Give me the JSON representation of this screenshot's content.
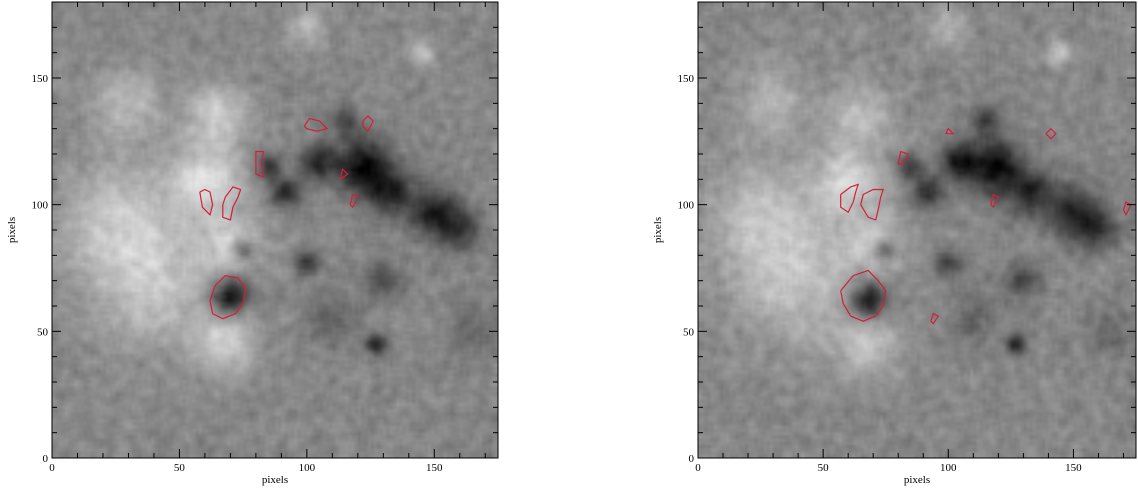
{
  "chart_data": [
    {
      "type": "heatmap",
      "title": "",
      "xlabel": "pixels",
      "ylabel": "pixels",
      "xlim": [
        0,
        175
      ],
      "ylim": [
        0,
        180
      ],
      "xticks": [
        0,
        50,
        100,
        150
      ],
      "yticks": [
        0,
        50,
        100,
        150
      ],
      "grid": false,
      "colormap": "gray",
      "contour_color": "#d0203a",
      "blobs": [
        {
          "x": 25,
          "y": 95,
          "r": 22,
          "v": 0.45
        },
        {
          "x": 40,
          "y": 70,
          "r": 25,
          "v": 0.5
        },
        {
          "x": 60,
          "y": 110,
          "r": 14,
          "v": 0.7
        },
        {
          "x": 65,
          "y": 135,
          "r": 12,
          "v": 0.55
        },
        {
          "x": 70,
          "y": 85,
          "r": 12,
          "v": 0.5
        },
        {
          "x": 68,
          "y": 45,
          "r": 12,
          "v": 0.55
        },
        {
          "x": 30,
          "y": 140,
          "r": 14,
          "v": 0.4
        },
        {
          "x": 100,
          "y": 170,
          "r": 8,
          "v": 0.35
        },
        {
          "x": 145,
          "y": 160,
          "r": 5,
          "v": 0.5
        },
        {
          "x": 70,
          "y": 64,
          "r": 7,
          "v": -1.1
        },
        {
          "x": 122,
          "y": 115,
          "r": 11,
          "v": -1.0
        },
        {
          "x": 104,
          "y": 117,
          "r": 7,
          "v": -0.8
        },
        {
          "x": 133,
          "y": 105,
          "r": 9,
          "v": -0.7
        },
        {
          "x": 150,
          "y": 97,
          "r": 10,
          "v": -0.8
        },
        {
          "x": 160,
          "y": 90,
          "r": 8,
          "v": -0.6
        },
        {
          "x": 92,
          "y": 105,
          "r": 6,
          "v": -0.75
        },
        {
          "x": 75,
          "y": 82,
          "r": 4,
          "v": -0.7
        },
        {
          "x": 100,
          "y": 77,
          "r": 5,
          "v": -0.6
        },
        {
          "x": 130,
          "y": 70,
          "r": 7,
          "v": -0.5
        },
        {
          "x": 127,
          "y": 45,
          "r": 4,
          "v": -0.8
        },
        {
          "x": 85,
          "y": 115,
          "r": 5,
          "v": -0.6
        },
        {
          "x": 115,
          "y": 133,
          "r": 6,
          "v": -0.5
        },
        {
          "x": 110,
          "y": 55,
          "r": 10,
          "v": -0.3
        },
        {
          "x": 165,
          "y": 50,
          "r": 10,
          "v": -0.25
        }
      ],
      "contours": [
        [
          [
            58,
            105
          ],
          [
            59,
            99
          ],
          [
            62,
            96
          ],
          [
            63,
            100
          ],
          [
            62,
            105
          ],
          [
            60,
            106
          ],
          [
            58,
            105
          ]
        ],
        [
          [
            67,
            100
          ],
          [
            67,
            95
          ],
          [
            70,
            94
          ],
          [
            71,
            99
          ],
          [
            73,
            103
          ],
          [
            74,
            106
          ],
          [
            71,
            107
          ],
          [
            68,
            103
          ],
          [
            67,
            100
          ]
        ],
        [
          [
            80,
            116
          ],
          [
            80,
            121
          ],
          [
            83,
            121
          ],
          [
            82,
            116
          ],
          [
            83,
            111
          ],
          [
            80,
            112
          ],
          [
            80,
            116
          ]
        ],
        [
          [
            64,
            68
          ],
          [
            62,
            62
          ],
          [
            63,
            57
          ],
          [
            67,
            55
          ],
          [
            72,
            57
          ],
          [
            75,
            61
          ],
          [
            76,
            67
          ],
          [
            73,
            71
          ],
          [
            68,
            72
          ],
          [
            64,
            68
          ]
        ],
        [
          [
            99,
            131
          ],
          [
            101,
            134
          ],
          [
            105,
            133
          ],
          [
            108,
            130
          ],
          [
            104,
            129
          ],
          [
            100,
            130
          ],
          [
            99,
            131
          ]
        ],
        [
          [
            122,
            133
          ],
          [
            124,
            135
          ],
          [
            126,
            133
          ],
          [
            124,
            129
          ],
          [
            122,
            131
          ],
          [
            122,
            133
          ]
        ],
        [
          [
            117,
            100
          ],
          [
            118,
            104
          ],
          [
            120,
            103
          ],
          [
            118,
            99
          ],
          [
            117,
            100
          ]
        ],
        [
          [
            113,
            110
          ],
          [
            114,
            114
          ],
          [
            116,
            112
          ],
          [
            113,
            110
          ]
        ]
      ]
    },
    {
      "type": "heatmap",
      "title": "",
      "xlabel": "pixels",
      "ylabel": "pixels",
      "xlim": [
        0,
        175
      ],
      "ylim": [
        0,
        180
      ],
      "xticks": [
        0,
        50,
        100,
        150
      ],
      "yticks": [
        0,
        50,
        100,
        150
      ],
      "grid": false,
      "colormap": "gray",
      "contour_color": "#d0203a",
      "blobs": [
        {
          "x": 25,
          "y": 95,
          "r": 22,
          "v": 0.4
        },
        {
          "x": 40,
          "y": 70,
          "r": 25,
          "v": 0.45
        },
        {
          "x": 60,
          "y": 110,
          "r": 14,
          "v": 0.6
        },
        {
          "x": 65,
          "y": 135,
          "r": 12,
          "v": 0.45
        },
        {
          "x": 70,
          "y": 85,
          "r": 12,
          "v": 0.45
        },
        {
          "x": 68,
          "y": 45,
          "r": 12,
          "v": 0.5
        },
        {
          "x": 30,
          "y": 140,
          "r": 14,
          "v": 0.35
        },
        {
          "x": 100,
          "y": 170,
          "r": 8,
          "v": 0.3
        },
        {
          "x": 145,
          "y": 160,
          "r": 5,
          "v": 0.45
        },
        {
          "x": 68,
          "y": 62,
          "r": 7,
          "v": -1.1
        },
        {
          "x": 118,
          "y": 115,
          "r": 11,
          "v": -1.0
        },
        {
          "x": 104,
          "y": 117,
          "r": 7,
          "v": -0.8
        },
        {
          "x": 133,
          "y": 105,
          "r": 9,
          "v": -0.75
        },
        {
          "x": 150,
          "y": 97,
          "r": 10,
          "v": -0.8
        },
        {
          "x": 160,
          "y": 90,
          "r": 8,
          "v": -0.6
        },
        {
          "x": 92,
          "y": 105,
          "r": 6,
          "v": -0.75
        },
        {
          "x": 75,
          "y": 82,
          "r": 4,
          "v": -0.7
        },
        {
          "x": 100,
          "y": 77,
          "r": 5,
          "v": -0.6
        },
        {
          "x": 130,
          "y": 70,
          "r": 7,
          "v": -0.5
        },
        {
          "x": 127,
          "y": 45,
          "r": 4,
          "v": -0.8
        },
        {
          "x": 85,
          "y": 115,
          "r": 5,
          "v": -0.6
        },
        {
          "x": 115,
          "y": 133,
          "r": 6,
          "v": -0.5
        },
        {
          "x": 110,
          "y": 55,
          "r": 10,
          "v": -0.3
        },
        {
          "x": 165,
          "y": 50,
          "r": 10,
          "v": -0.25
        }
      ],
      "contours": [
        [
          [
            57,
            104
          ],
          [
            57,
            99
          ],
          [
            60,
            97
          ],
          [
            62,
            101
          ],
          [
            63,
            105
          ],
          [
            64,
            108
          ],
          [
            61,
            107
          ],
          [
            57,
            104
          ]
        ],
        [
          [
            65,
            100
          ],
          [
            68,
            95
          ],
          [
            71,
            94
          ],
          [
            72,
            98
          ],
          [
            73,
            103
          ],
          [
            74,
            106
          ],
          [
            70,
            106
          ],
          [
            66,
            104
          ],
          [
            65,
            100
          ]
        ],
        [
          [
            80,
            116
          ],
          [
            81,
            121
          ],
          [
            84,
            120
          ],
          [
            82,
            116
          ],
          [
            80,
            116
          ]
        ],
        [
          [
            57,
            66
          ],
          [
            58,
            61
          ],
          [
            61,
            56
          ],
          [
            66,
            54
          ],
          [
            71,
            56
          ],
          [
            74,
            60
          ],
          [
            75,
            66
          ],
          [
            72,
            70
          ],
          [
            68,
            74
          ],
          [
            62,
            72
          ],
          [
            57,
            66
          ]
        ],
        [
          [
            99,
            128
          ],
          [
            100,
            130
          ],
          [
            102,
            128
          ],
          [
            99,
            128
          ]
        ],
        [
          [
            139,
            128
          ],
          [
            141,
            130
          ],
          [
            143,
            128
          ],
          [
            141,
            126
          ],
          [
            139,
            128
          ]
        ],
        [
          [
            117,
            100
          ],
          [
            118,
            104
          ],
          [
            120,
            103
          ],
          [
            118,
            99
          ],
          [
            117,
            100
          ]
        ],
        [
          [
            170,
            98
          ],
          [
            171,
            101
          ],
          [
            173,
            100
          ],
          [
            171,
            96
          ],
          [
            170,
            98
          ]
        ],
        [
          [
            93,
            54
          ],
          [
            94,
            57
          ],
          [
            96,
            56
          ],
          [
            94,
            53
          ],
          [
            93,
            54
          ]
        ]
      ]
    }
  ]
}
